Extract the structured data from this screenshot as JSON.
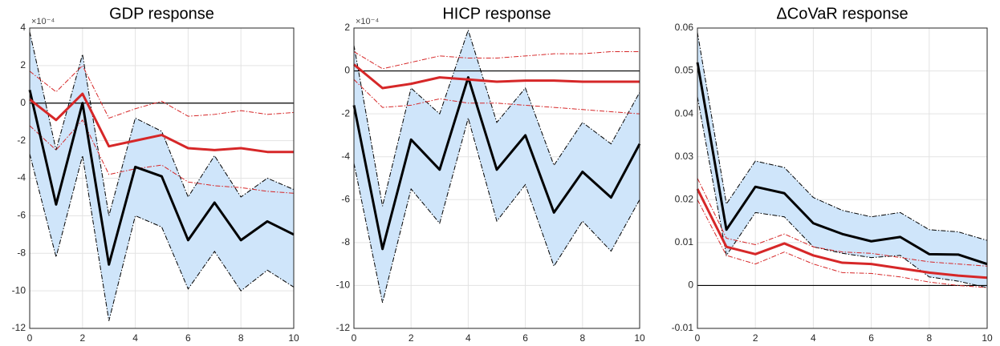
{
  "chart_data": [
    {
      "type": "line",
      "title": "GDP response",
      "exponent_label": "×10⁻⁴",
      "x": [
        0,
        1,
        2,
        3,
        4,
        5,
        6,
        7,
        8,
        9,
        10
      ],
      "xlim": [
        0,
        10
      ],
      "xticks": [
        0,
        2,
        4,
        6,
        8,
        10
      ],
      "ylim": [
        -12,
        4
      ],
      "yticks": [
        -12,
        -10,
        -8,
        -6,
        -4,
        -2,
        0,
        2,
        4
      ],
      "grid": true,
      "hline": 0,
      "bands": [
        {
          "line_color": "#000000",
          "fill": "#cfe5fa",
          "upper": [
            3.8,
            -2.5,
            2.6,
            -6.0,
            -0.8,
            -1.5,
            -5.0,
            -2.8,
            -5.0,
            -4.0,
            -4.6
          ],
          "lower": [
            -2.7,
            -8.2,
            -2.8,
            -11.6,
            -6.0,
            -6.6,
            -9.9,
            -7.9,
            -10.0,
            -8.9,
            -9.8
          ]
        },
        {
          "line_color": "#d62728",
          "upper": [
            1.7,
            0.6,
            2.0,
            -0.8,
            -0.3,
            0.1,
            -0.7,
            -0.6,
            -0.4,
            -0.6,
            -0.5
          ],
          "lower": [
            -1.2,
            -2.5,
            -0.9,
            -3.8,
            -3.5,
            -3.3,
            -4.2,
            -4.4,
            -4.5,
            -4.7,
            -4.8
          ]
        }
      ],
      "series": [
        {
          "color": "#000000",
          "values": [
            0.7,
            -5.4,
            0.0,
            -8.6,
            -3.4,
            -3.9,
            -7.3,
            -5.3,
            -7.3,
            -6.3,
            -7.0
          ]
        },
        {
          "color": "#d62728",
          "values": [
            0.2,
            -0.9,
            0.5,
            -2.3,
            -2.0,
            -1.7,
            -2.4,
            -2.5,
            -2.4,
            -2.6,
            -2.6
          ]
        }
      ]
    },
    {
      "type": "line",
      "title": "HICP response",
      "exponent_label": "×10⁻⁴",
      "x": [
        0,
        1,
        2,
        3,
        4,
        5,
        6,
        7,
        8,
        9,
        10
      ],
      "xlim": [
        0,
        10
      ],
      "xticks": [
        0,
        2,
        4,
        6,
        8,
        10
      ],
      "ylim": [
        -12,
        2
      ],
      "yticks": [
        -12,
        -10,
        -8,
        -6,
        -4,
        -2,
        0,
        2
      ],
      "grid": true,
      "hline": 0,
      "bands": [
        {
          "line_color": "#000000",
          "fill": "#cfe5fa",
          "upper": [
            1.2,
            -6.3,
            -0.8,
            -2.0,
            1.9,
            -2.4,
            -0.8,
            -4.4,
            -2.4,
            -3.4,
            -1.0
          ],
          "lower": [
            -4.3,
            -10.8,
            -5.5,
            -7.1,
            -2.2,
            -7.0,
            -5.3,
            -9.1,
            -7.0,
            -8.4,
            -6.0
          ]
        },
        {
          "line_color": "#d62728",
          "upper": [
            0.9,
            0.1,
            0.4,
            0.7,
            0.6,
            0.6,
            0.7,
            0.8,
            0.8,
            0.9,
            0.9
          ],
          "lower": [
            -0.4,
            -1.7,
            -1.6,
            -1.3,
            -1.5,
            -1.5,
            -1.6,
            -1.7,
            -1.8,
            -1.9,
            -2.0
          ]
        }
      ],
      "series": [
        {
          "color": "#000000",
          "values": [
            -1.6,
            -8.3,
            -3.2,
            -4.6,
            -0.3,
            -4.6,
            -3.0,
            -6.6,
            -4.7,
            -5.9,
            -3.4
          ]
        },
        {
          "color": "#d62728",
          "values": [
            0.3,
            -0.8,
            -0.6,
            -0.3,
            -0.4,
            -0.5,
            -0.45,
            -0.45,
            -0.5,
            -0.5,
            -0.5
          ]
        }
      ]
    },
    {
      "type": "line",
      "title": "ΔCoVaR response",
      "x": [
        0,
        1,
        2,
        3,
        4,
        5,
        6,
        7,
        8,
        9,
        10
      ],
      "xlim": [
        0,
        10
      ],
      "xticks": [
        0,
        2,
        4,
        6,
        8,
        10
      ],
      "ylim": [
        -0.01,
        0.06
      ],
      "yticks": [
        -0.01,
        0,
        0.01,
        0.02,
        0.03,
        0.04,
        0.05,
        0.06
      ],
      "grid": true,
      "hline": 0,
      "bands": [
        {
          "line_color": "#000000",
          "fill": "#cfe5fa",
          "upper": [
            0.059,
            0.019,
            0.029,
            0.0275,
            0.0205,
            0.0175,
            0.016,
            0.017,
            0.013,
            0.0125,
            0.0105
          ],
          "lower": [
            0.044,
            0.007,
            0.017,
            0.016,
            0.009,
            0.0075,
            0.0065,
            0.007,
            0.002,
            0.001,
            -0.0005
          ]
        },
        {
          "line_color": "#d62728",
          "upper": [
            0.025,
            0.011,
            0.0095,
            0.012,
            0.009,
            0.0078,
            0.0075,
            0.0065,
            0.0055,
            0.005,
            0.0045
          ],
          "lower": [
            0.02,
            0.007,
            0.005,
            0.0078,
            0.005,
            0.003,
            0.0028,
            0.002,
            0.0008,
            0.0,
            -0.0005
          ]
        }
      ],
      "series": [
        {
          "color": "#000000",
          "values": [
            0.052,
            0.013,
            0.023,
            0.0215,
            0.0145,
            0.012,
            0.0103,
            0.0113,
            0.0073,
            0.0072,
            0.005
          ]
        },
        {
          "color": "#d62728",
          "values": [
            0.0225,
            0.009,
            0.0073,
            0.0098,
            0.007,
            0.0053,
            0.005,
            0.004,
            0.003,
            0.0023,
            0.0018
          ]
        }
      ]
    }
  ]
}
